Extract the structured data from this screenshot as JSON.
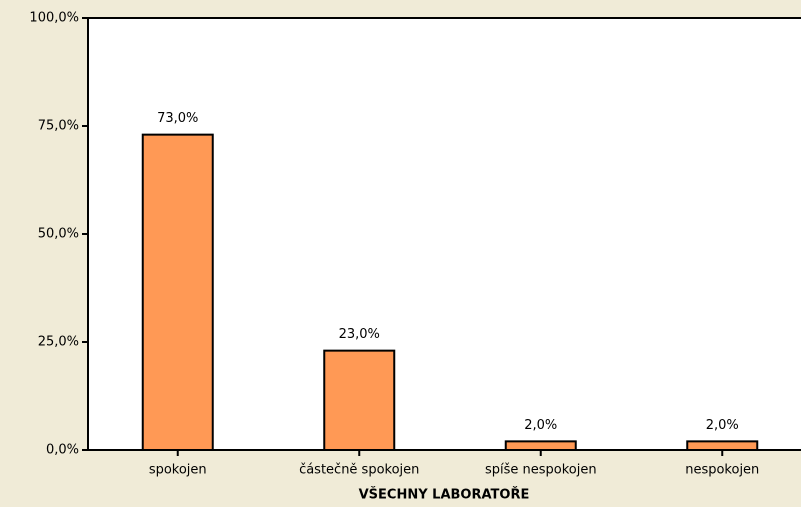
{
  "chart_data": {
    "type": "bar",
    "x_label": "VŠECHNY LABORATOŘE",
    "categories": [
      "spokojen",
      "částečně spokojen",
      "spíše nespokojen",
      "nespokojen"
    ],
    "values": [
      73,
      23,
      2,
      2
    ],
    "value_labels": [
      "73,0%",
      "23,0%",
      "2,0%",
      "2,0%"
    ],
    "color": "#ff9955",
    "ylim": [
      0,
      100
    ],
    "yticks": [
      {
        "value": 0,
        "label": "0,0%"
      },
      {
        "value": 25,
        "label": "25,0%"
      },
      {
        "value": 50,
        "label": "50,0%"
      },
      {
        "value": 75,
        "label": "75,0%"
      },
      {
        "value": 100,
        "label": "100,0%"
      }
    ]
  }
}
